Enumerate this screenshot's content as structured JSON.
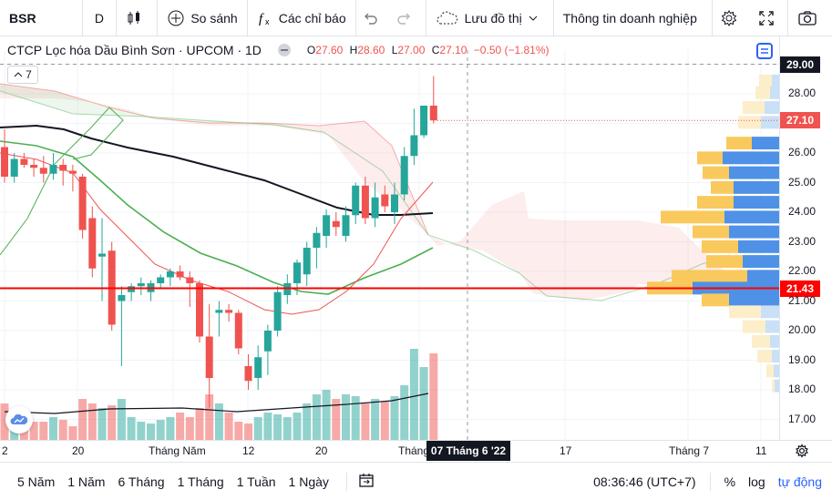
{
  "toolbar": {
    "symbol": "BSR",
    "interval": "D",
    "compare": "So sánh",
    "indicators": "Các chỉ báo",
    "save_layout": "Lưu đồ thị",
    "company_info": "Thông tin doanh nghiệp"
  },
  "legend": {
    "title": "CTCP Lọc hóa Dầu Bình Sơn · UPCOM · 1D",
    "o_label": "O",
    "o": "27.60",
    "h_label": "H",
    "h": "28.60",
    "l_label": "L",
    "l": "27.00",
    "c_label": "C",
    "c": "27.10",
    "change": "−0.50 (−1.81%)",
    "indicator_count": "7"
  },
  "price_axis": {
    "labels": [
      "29.00",
      "28.00",
      "27.10",
      "26.00",
      "25.00",
      "24.00",
      "23.00",
      "22.00",
      "21.43",
      "21.00",
      "20.00",
      "19.00",
      "18.00",
      "17.00"
    ],
    "crosshair_price": "29.00",
    "last_price": "27.10",
    "line_price": "21.43"
  },
  "time_axis": {
    "labels": [
      "2",
      "20",
      "Tháng Năm",
      "12",
      "20",
      "Tháng",
      "17",
      "Tháng 7",
      "11"
    ],
    "crosshair_date": "07 Tháng 6 '22"
  },
  "bottom": {
    "ranges": [
      "5 Năm",
      "1 Năm",
      "6 Tháng",
      "1 Tháng",
      "1 Tuần",
      "1 Ngày"
    ],
    "clock": "08:36:46 (UTC+7)",
    "percent": "%",
    "log": "log",
    "auto": "tự động"
  },
  "colors": {
    "up": "#26a69a",
    "down": "#ef5350",
    "accent": "#2962ff"
  },
  "chart_data": {
    "type": "candlestick",
    "candles": [
      [
        26.2,
        26.8,
        25.0,
        25.2
      ],
      [
        25.2,
        26.0,
        25.0,
        25.8
      ],
      [
        25.8,
        26.0,
        25.5,
        25.6
      ],
      [
        25.6,
        25.8,
        25.2,
        25.5
      ],
      [
        25.5,
        25.9,
        25.0,
        25.3
      ],
      [
        25.3,
        26.0,
        25.1,
        25.6
      ],
      [
        25.6,
        25.8,
        24.9,
        25.4
      ],
      [
        25.4,
        25.6,
        24.7,
        25.3
      ],
      [
        25.2,
        25.3,
        23.1,
        23.4
      ],
      [
        23.8,
        24.2,
        21.8,
        22.1
      ],
      [
        22.5,
        23.8,
        21.0,
        22.6
      ],
      [
        22.7,
        23.0,
        20.0,
        20.2
      ],
      [
        21.0,
        21.5,
        18.8,
        21.2
      ],
      [
        21.3,
        21.6,
        21.0,
        21.5
      ],
      [
        21.5,
        21.8,
        21.2,
        21.6
      ],
      [
        21.3,
        21.7,
        21.0,
        21.6
      ],
      [
        21.6,
        21.9,
        21.4,
        21.8
      ],
      [
        21.8,
        22.1,
        21.5,
        22.0
      ],
      [
        22.0,
        22.2,
        21.7,
        21.8
      ],
      [
        21.8,
        22.0,
        20.8,
        21.6
      ],
      [
        21.6,
        21.7,
        19.6,
        19.8
      ],
      [
        19.8,
        20.9,
        17.4,
        18.4
      ],
      [
        20.6,
        21.0,
        19.8,
        20.7
      ],
      [
        20.7,
        20.9,
        20.3,
        20.6
      ],
      [
        20.6,
        20.7,
        19.2,
        19.4
      ],
      [
        18.8,
        19.2,
        18.0,
        18.3
      ],
      [
        18.4,
        19.5,
        18.0,
        19.1
      ],
      [
        19.3,
        20.2,
        18.5,
        20.0
      ],
      [
        20.0,
        21.5,
        19.8,
        21.3
      ],
      [
        21.2,
        21.9,
        20.9,
        21.6
      ],
      [
        21.6,
        22.4,
        21.2,
        22.3
      ],
      [
        21.9,
        23.0,
        21.5,
        22.8
      ],
      [
        22.8,
        23.5,
        22.1,
        23.3
      ],
      [
        23.2,
        24.1,
        22.8,
        23.9
      ],
      [
        23.7,
        24.0,
        23.2,
        23.5
      ],
      [
        23.2,
        24.2,
        23.0,
        23.9
      ],
      [
        23.9,
        25.0,
        23.6,
        24.9
      ],
      [
        24.9,
        25.2,
        23.6,
        23.8
      ],
      [
        23.8,
        25.0,
        23.5,
        24.5
      ],
      [
        24.6,
        24.9,
        24.0,
        24.2
      ],
      [
        24.0,
        25.0,
        23.6,
        24.6
      ],
      [
        24.6,
        26.2,
        24.4,
        25.9
      ],
      [
        25.9,
        27.5,
        25.6,
        26.6
      ],
      [
        26.6,
        27.6,
        26.5,
        27.6
      ],
      [
        27.6,
        28.6,
        27.0,
        27.1
      ]
    ]
  }
}
